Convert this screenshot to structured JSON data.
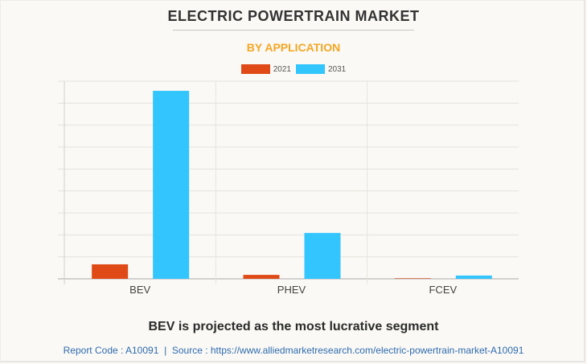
{
  "header": {
    "title": "ELECTRIC POWERTRAIN MARKET",
    "subtitle": "BY APPLICATION"
  },
  "footer": {
    "headline": "BEV is projected as the most lucrative segment",
    "report_code": "Report Code : A10091",
    "separator": "|",
    "source": "Source : https://www.alliedmarketresearch.com/electric-powertrain-market-A10091"
  },
  "colors": {
    "series_2021": "#e04a17",
    "series_2031": "#33c5fe",
    "title": "#333333",
    "subtitle": "#f5a623",
    "link": "#2f6bb0"
  },
  "chart_data": {
    "type": "bar",
    "title": "ELECTRIC POWERTRAIN MARKET",
    "subtitle": "BY APPLICATION",
    "xlabel": "",
    "ylabel": "",
    "categories": [
      "BEV",
      "PHEV",
      "FCEV"
    ],
    "series": [
      {
        "name": "2021",
        "color": "#e04a17",
        "values": [
          0.66,
          0.18,
          0.02
        ]
      },
      {
        "name": "2031",
        "color": "#33c5fe",
        "values": [
          8.56,
          2.09,
          0.15
        ]
      }
    ],
    "ylim": [
      0,
      9
    ],
    "y_units_note_hidden": null,
    "gridlines": 9,
    "grid": true,
    "y_tick_labels_shown": false,
    "legend_position": "top-center"
  }
}
